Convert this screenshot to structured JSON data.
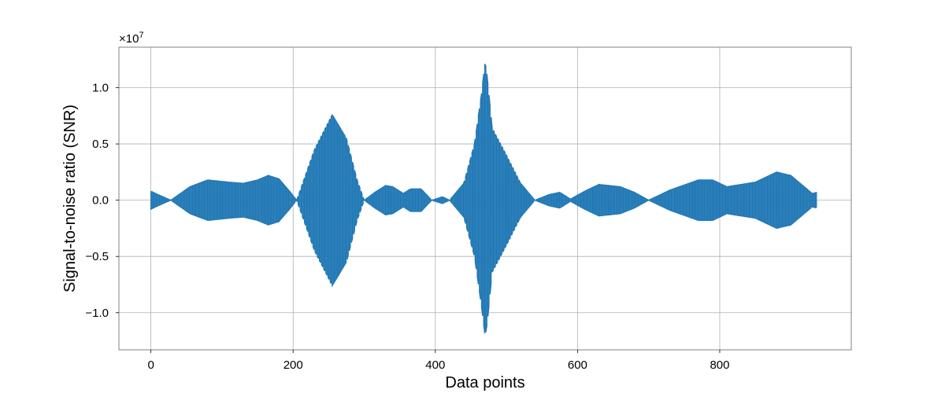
{
  "chart_data": {
    "type": "line",
    "xlabel": "Data points",
    "ylabel": "Signal-to-noise ratio (SNR)",
    "scale_exponent_label": "×10",
    "scale_exponent_power": "7",
    "xlim": [
      -45,
      985
    ],
    "ylim": [
      -13300000,
      13600000
    ],
    "grid": true,
    "x_ticks": [
      0,
      200,
      400,
      600,
      800
    ],
    "x_tick_labels": [
      "0",
      "200",
      "400",
      "600",
      "800"
    ],
    "y_ticks": [
      -10000000,
      -5000000,
      0,
      5000000,
      10000000
    ],
    "y_tick_labels": [
      "−1.0",
      "−0.5",
      "0.0",
      "0.5",
      "1.0"
    ],
    "series": [
      {
        "color": "#1f77b4",
        "x_range": [
          0,
          937
        ],
        "envelope_note": "oscillating signal; upper/lower envelope in data units",
        "envelope_x": [
          0,
          10,
          28,
          55,
          80,
          110,
          130,
          150,
          165,
          180,
          195,
          205,
          230,
          255,
          275,
          290,
          300,
          315,
          330,
          340,
          355,
          365,
          380,
          395,
          410,
          420,
          440,
          455,
          465,
          470,
          473,
          480,
          500,
          520,
          540,
          560,
          575,
          590,
          610,
          630,
          660,
          680,
          700,
          730,
          770,
          790,
          810,
          850,
          880,
          900,
          930,
          937
        ],
        "envelope_max": [
          800000,
          500000,
          0,
          1200000,
          1800000,
          1600000,
          1500000,
          1800000,
          2200000,
          1900000,
          800000,
          0,
          4500000,
          7600000,
          5500000,
          1800000,
          0,
          700000,
          1300000,
          1200000,
          600000,
          1000000,
          1000000,
          0,
          300000,
          0,
          1500000,
          5000000,
          9500000,
          12400000,
          11000000,
          6400000,
          4000000,
          1500000,
          0,
          500000,
          700000,
          100000,
          800000,
          1400000,
          1200000,
          700000,
          0,
          900000,
          1800000,
          1800000,
          1200000,
          1600000,
          2500000,
          2200000,
          600000,
          700000
        ],
        "envelope_min": [
          -800000,
          -500000,
          0,
          -1200000,
          -1800000,
          -1600000,
          -1500000,
          -1800000,
          -2200000,
          -1900000,
          -800000,
          0,
          -4500000,
          -7600000,
          -5500000,
          -1800000,
          0,
          -700000,
          -1300000,
          -1200000,
          -600000,
          -1000000,
          -1000000,
          0,
          -300000,
          0,
          -1500000,
          -5000000,
          -9500000,
          -12100000,
          -11000000,
          -6400000,
          -4000000,
          -1500000,
          0,
          -500000,
          -700000,
          -100000,
          -800000,
          -1400000,
          -1200000,
          -700000,
          0,
          -900000,
          -1800000,
          -1800000,
          -1200000,
          -1600000,
          -2500000,
          -2200000,
          -600000,
          -700000
        ]
      }
    ]
  }
}
